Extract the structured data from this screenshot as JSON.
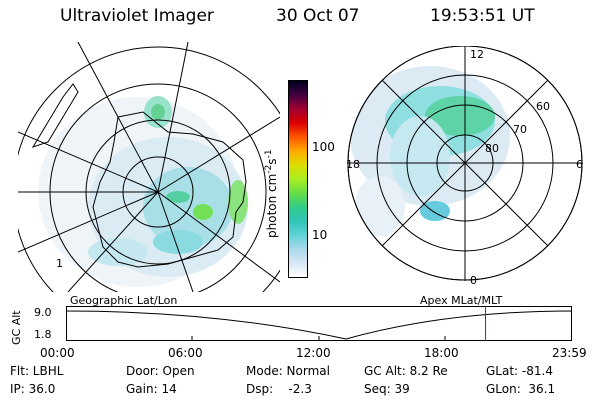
{
  "header": {
    "instrument": "Ultraviolet Imager",
    "date": "30 Oct 07",
    "time": "19:53:51 UT"
  },
  "colorbar": {
    "unit_label": "photon cm",
    "unit_exp1": "-2",
    "unit_mid": "s",
    "unit_exp2": "-1",
    "ticks": [
      "100",
      "10"
    ],
    "colors": [
      "#ffffff",
      "#d8e6f5",
      "#a8d8ea",
      "#5fd3d8",
      "#2ec4b6",
      "#33cc88",
      "#66dd44",
      "#aaee22",
      "#dddd00",
      "#ffaa00",
      "#ff5500",
      "#dd0000",
      "#a00030",
      "#400040",
      "#000020"
    ]
  },
  "geographic_map": {
    "label": "Geographic Lat/Lon",
    "small_mark": "1"
  },
  "apex_map": {
    "label": "Apex MLat/MLT",
    "mlt_labels": {
      "top": "12",
      "bottom": "0",
      "left": "18",
      "right": "6"
    },
    "lat_labels": [
      "60",
      "70",
      "80"
    ]
  },
  "timeline": {
    "ylabel": "GC Alt",
    "yticks": [
      "9.0",
      "1.8"
    ],
    "xticks": [
      "00:00",
      "06:00",
      "12:00",
      "18:00",
      "23:59"
    ],
    "cursor_hour": 19.9
  },
  "status": {
    "filter": "Flt: LBHL",
    "ip": "IP: 36.0",
    "door": "Door: Open",
    "gain": "Gain: 14",
    "mode": "Mode: Normal",
    "dsp": "Dsp:    -2.3",
    "gc_alt": "GC Alt: 8.2 Re",
    "seq": "Seq: 39",
    "glat": "GLat: -81.4",
    "glon": "GLon:  36.1"
  }
}
